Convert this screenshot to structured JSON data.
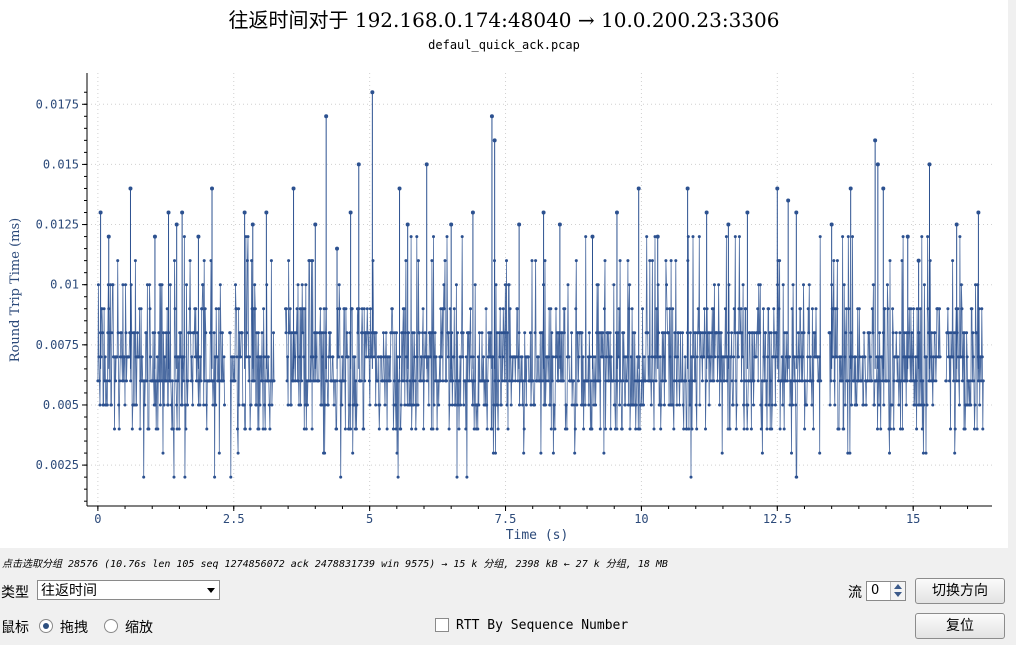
{
  "title": "往返时间对于 192.168.0.174:48040 → 10.0.200.23:3306",
  "subtitle": "defaul_quick_ack.pcap",
  "status_text": "点击选取分组 28576 (10.76s len 105 seq 1274856072 ack 2478831739 win 9575) → 15 k 分组, 2398 kB ← 27 k 分组, 18 MB",
  "controls": {
    "type_label": "类型",
    "type_value": "往返时间",
    "stream_label": "流",
    "stream_value": "0",
    "switch_direction_label": "切换方向",
    "mouse_label": "鼠标",
    "drag_label": "拖拽",
    "zoom_label": "缩放",
    "mouse_mode": "drag",
    "rtt_checkbox_label": "RTT By Sequence Number",
    "rtt_checked": false,
    "reset_label": "复位"
  },
  "chart_data": {
    "type": "line",
    "xlabel": "Time (s)",
    "ylabel": "Round Trip Time (ms)",
    "xlim": [
      -0.2,
      16.45
    ],
    "ylim": [
      0.0008,
      0.0188
    ],
    "x_ticks": [
      "0",
      "2.5",
      "5",
      "7.5",
      "10",
      "12.5",
      "15"
    ],
    "y_ticks": [
      "0.0025",
      "0.005",
      "0.0075",
      "0.01",
      "0.0125",
      "0.015",
      "0.0175"
    ],
    "grid": true,
    "series_color": "#2c5190",
    "gaps": [
      [
        2.33,
        2.42
      ],
      [
        3.25,
        3.45
      ],
      [
        13.3,
        13.45
      ],
      [
        15.5,
        15.6
      ]
    ],
    "series": [
      {
        "x": [
          0.05,
          0.2,
          0.6,
          1.05,
          1.3,
          1.45,
          1.55,
          1.85,
          2.1,
          2.7,
          2.85,
          3.1,
          3.6,
          4.0,
          4.2,
          4.4,
          4.65,
          4.8,
          5.05,
          5.55,
          5.7,
          6.05,
          6.5,
          6.9,
          7.25,
          7.3,
          7.75,
          8.2,
          8.5,
          9.1,
          9.55,
          9.95,
          10.3,
          10.85,
          11.2,
          11.6,
          11.95,
          12.5,
          12.7,
          12.85,
          13.5,
          13.85,
          14.3,
          14.35,
          14.45,
          14.9,
          15.1,
          15.3,
          15.8,
          16.2
        ],
        "y": [
          0.013,
          0.012,
          0.014,
          0.012,
          0.013,
          0.0125,
          0.013,
          0.012,
          0.014,
          0.013,
          0.0125,
          0.013,
          0.014,
          0.0125,
          0.017,
          0.0115,
          0.013,
          0.015,
          0.018,
          0.014,
          0.0125,
          0.015,
          0.0125,
          0.013,
          0.017,
          0.016,
          0.0125,
          0.013,
          0.0125,
          0.012,
          0.013,
          0.014,
          0.012,
          0.014,
          0.013,
          0.0125,
          0.013,
          0.014,
          0.0135,
          0.013,
          0.0125,
          0.014,
          0.016,
          0.015,
          0.014,
          0.012,
          0.011,
          0.015,
          0.0125,
          0.013
        ]
      }
    ]
  }
}
